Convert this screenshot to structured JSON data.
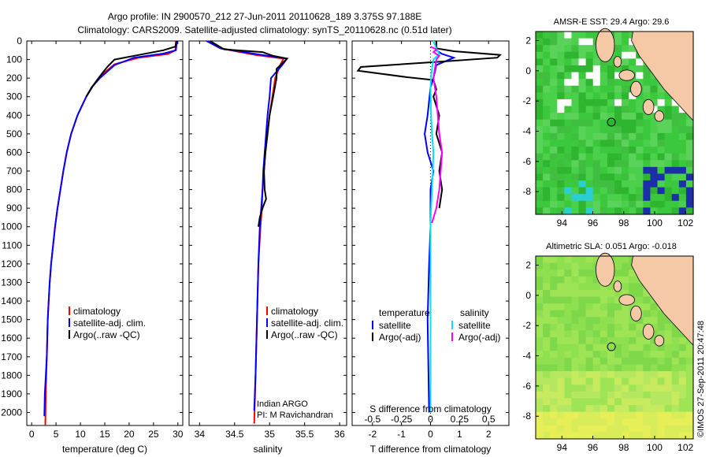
{
  "header": {
    "line1": "Argo profile: IN 2900570_212 27-Jun-2011 20110628_189 3.375S 97.188E",
    "line2": "Climatology: CARS2009. Satellite-adjusted climatology: synTS_20110628.nc (0.51d later)"
  },
  "credit": "©IMOS 27-Sep-2011 20:47:48",
  "depth_ticks": [
    0,
    100,
    200,
    300,
    400,
    500,
    600,
    700,
    800,
    900,
    1000,
    1100,
    1200,
    1300,
    1400,
    1500,
    1600,
    1700,
    1800,
    1900,
    2000
  ],
  "colors": {
    "climatology": "#ff0000",
    "satellite": "#0000ff",
    "argo": "#000000",
    "salinity_sat": "#00e0ff",
    "salinity_argo": "#ff00ff",
    "land": "#f5c9a6",
    "missing": "#ffffff"
  },
  "chart_data": [
    {
      "id": "temperature",
      "type": "line",
      "xlabel": "temperature (deg C)",
      "xlim": [
        -1,
        31
      ],
      "ylim": [
        2070,
        0
      ],
      "xticks": [
        0,
        5,
        10,
        15,
        20,
        25,
        30
      ],
      "legend": [
        "climatology",
        "satellite-adj. clim.",
        "Argo(..raw -QC)"
      ],
      "series": [
        {
          "name": "climatology",
          "color": "#ff0000",
          "points": [
            [
              29.6,
              0
            ],
            [
              29.5,
              50
            ],
            [
              28,
              70
            ],
            [
              22,
              90
            ],
            [
              17,
              125
            ],
            [
              14,
              190
            ],
            [
              12.3,
              250
            ],
            [
              11.2,
              300
            ],
            [
              9.4,
              400
            ],
            [
              8.1,
              500
            ],
            [
              7.2,
              600
            ],
            [
              6.5,
              700
            ],
            [
              5.9,
              800
            ],
            [
              5.3,
              900
            ],
            [
              4.8,
              1000
            ],
            [
              4.4,
              1100
            ],
            [
              4.0,
              1200
            ],
            [
              3.7,
              1300
            ],
            [
              3.5,
              1400
            ],
            [
              3.3,
              1500
            ],
            [
              3.1,
              1700
            ],
            [
              2.9,
              1900
            ],
            [
              2.8,
              2070
            ]
          ]
        },
        {
          "name": "satellite-adj. clim.",
          "color": "#0000ff",
          "points": [
            [
              29.8,
              0
            ],
            [
              29.6,
              50
            ],
            [
              27,
              68
            ],
            [
              21,
              90
            ],
            [
              17,
              130
            ],
            [
              14,
              200
            ],
            [
              12.3,
              250
            ],
            [
              11.2,
              300
            ],
            [
              9.4,
              400
            ],
            [
              8.1,
              500
            ],
            [
              7.2,
              600
            ],
            [
              6.5,
              700
            ],
            [
              5.9,
              800
            ],
            [
              5.3,
              900
            ],
            [
              4.8,
              1000
            ],
            [
              4.4,
              1100
            ],
            [
              4.0,
              1200
            ],
            [
              3.7,
              1300
            ],
            [
              3.5,
              1400
            ],
            [
              3.3,
              1500
            ],
            [
              3.1,
              1700
            ],
            [
              2.7,
              1900
            ],
            [
              2.6,
              2020
            ]
          ]
        },
        {
          "name": "Argo(..raw -QC)",
          "color": "#000000",
          "points": [
            [
              29.7,
              0
            ],
            [
              29.5,
              30
            ],
            [
              27,
              50
            ],
            [
              22,
              75
            ],
            [
              17,
              100
            ],
            [
              15.5,
              140
            ],
            [
              14,
              190
            ],
            [
              12.5,
              245
            ],
            [
              11.2,
              300
            ]
          ]
        }
      ]
    },
    {
      "id": "salinity",
      "type": "line",
      "xlabel": "salinity",
      "xlim": [
        33.85,
        36.1
      ],
      "ylim": [
        2070,
        0
      ],
      "xticks": [
        34,
        34.5,
        35,
        35.5,
        36
      ],
      "legend": [
        "climatology",
        "satellite-adj. clim.",
        "Argo(..raw -QC)"
      ],
      "annotation": [
        "Indian ARGO",
        "PI: M Ravichandran"
      ],
      "series": [
        {
          "name": "climatology",
          "color": "#ff0000",
          "points": [
            [
              34.1,
              0
            ],
            [
              34.3,
              40
            ],
            [
              34.8,
              75
            ],
            [
              35.2,
              95
            ],
            [
              35.15,
              130
            ],
            [
              35.08,
              200
            ],
            [
              35.04,
              300
            ],
            [
              35.0,
              400
            ],
            [
              34.97,
              500
            ],
            [
              34.94,
              600
            ],
            [
              34.92,
              700
            ],
            [
              34.9,
              800
            ],
            [
              34.89,
              900
            ],
            [
              34.87,
              1000
            ],
            [
              34.84,
              1200
            ],
            [
              34.82,
              1500
            ],
            [
              34.8,
              1800
            ],
            [
              34.78,
              2060
            ]
          ]
        },
        {
          "name": "satellite-adj. clim.",
          "color": "#0000ff",
          "points": [
            [
              34.1,
              0
            ],
            [
              34.3,
              40
            ],
            [
              34.8,
              70
            ],
            [
              35.25,
              95
            ],
            [
              35.18,
              130
            ],
            [
              35.02,
              200
            ],
            [
              35.0,
              300
            ],
            [
              34.97,
              400
            ],
            [
              34.95,
              500
            ],
            [
              34.93,
              600
            ],
            [
              34.91,
              700
            ],
            [
              34.9,
              800
            ],
            [
              34.88,
              900
            ],
            [
              34.86,
              1000
            ],
            [
              34.84,
              1200
            ],
            [
              34.82,
              1500
            ],
            [
              34.8,
              1800
            ],
            [
              34.78,
              1990
            ]
          ]
        },
        {
          "name": "Argo(..raw -QC)",
          "color": "#000000",
          "points": [
            [
              34.15,
              0
            ],
            [
              34.35,
              45
            ],
            [
              34.9,
              60
            ],
            [
              35.05,
              80
            ],
            [
              35.25,
              95
            ],
            [
              35.1,
              150
            ],
            [
              35.1,
              200
            ],
            [
              35.05,
              300
            ],
            [
              35.0,
              400
            ],
            [
              34.97,
              500
            ],
            [
              34.94,
              600
            ],
            [
              34.92,
              700
            ],
            [
              34.93,
              800
            ],
            [
              34.95,
              850
            ],
            [
              34.9,
              900
            ],
            [
              34.86,
              950
            ],
            [
              34.84,
              1000
            ]
          ]
        }
      ]
    },
    {
      "id": "difference",
      "type": "line",
      "xlabel": "T difference from climatology",
      "xlabel_top": "S difference from climatology",
      "xlim": [
        -2.7,
        2.7
      ],
      "ylim": [
        2070,
        0
      ],
      "xticks": [
        -2,
        -1,
        0,
        1,
        2
      ],
      "sticks": [
        -0.5,
        -0.25,
        0,
        0.25,
        0.5
      ],
      "legend_header": [
        "temperature",
        "salinity"
      ],
      "legend": [
        "satellite",
        "Argo(-adj)",
        "satellite",
        "Argo(-adj)"
      ],
      "series": [
        {
          "name": "T satellite",
          "color": "#0000ff",
          "points": [
            [
              0.2,
              0
            ],
            [
              0.2,
              50
            ],
            [
              0.4,
              70
            ],
            [
              0.8,
              90
            ],
            [
              0.5,
              110
            ],
            [
              0.2,
              130
            ],
            [
              0.1,
              200
            ],
            [
              0.0,
              250
            ],
            [
              -0.1,
              400
            ],
            [
              -0.2,
              500
            ],
            [
              -0.1,
              600
            ],
            [
              0.1,
              700
            ],
            [
              0.0,
              800
            ],
            [
              0.0,
              1000
            ],
            [
              -0.05,
              1200
            ],
            [
              -0.1,
              1500
            ],
            [
              -0.05,
              2000
            ]
          ]
        },
        {
          "name": "T Argo(-adj)",
          "color": "#000000",
          "points": [
            [
              0.2,
              0
            ],
            [
              0.2,
              40
            ],
            [
              0.8,
              55
            ],
            [
              2.4,
              75
            ],
            [
              2.3,
              90
            ],
            [
              0.5,
              110
            ],
            [
              -2.4,
              140
            ],
            [
              -2.5,
              160
            ],
            [
              -0.8,
              195
            ],
            [
              0.1,
              210
            ],
            [
              0.2,
              260
            ],
            [
              0.1,
              300
            ],
            [
              0.3,
              400
            ],
            [
              0.2,
              500
            ],
            [
              0.4,
              600
            ],
            [
              0.3,
              700
            ],
            [
              0.4,
              800
            ],
            [
              0.3,
              900
            ]
          ]
        },
        {
          "name": "S satellite",
          "color": "#00e0ff",
          "points": [
            [
              0.1,
              0
            ],
            [
              0.2,
              40
            ],
            [
              0.3,
              70
            ],
            [
              0.1,
              100
            ],
            [
              0.05,
              150
            ],
            [
              0.02,
              200
            ],
            [
              0.0,
              250
            ],
            [
              0.02,
              400
            ],
            [
              0.05,
              500
            ],
            [
              0.1,
              600
            ],
            [
              0.08,
              700
            ],
            [
              0.05,
              800
            ],
            [
              0.02,
              900
            ],
            [
              0.0,
              1000
            ],
            [
              0.0,
              1500
            ],
            [
              0.0,
              2000
            ]
          ]
        },
        {
          "name": "S Argo(-adj)",
          "color": "#ff00ff",
          "points": [
            [
              0.0,
              30
            ],
            [
              0.2,
              45
            ],
            [
              0.1,
              60
            ],
            [
              0.3,
              80
            ],
            [
              0.2,
              100
            ],
            [
              0.15,
              150
            ],
            [
              0.1,
              200
            ],
            [
              0.2,
              300
            ],
            [
              0.25,
              400
            ],
            [
              0.3,
              500
            ],
            [
              0.4,
              600
            ],
            [
              0.35,
              700
            ],
            [
              0.3,
              800
            ],
            [
              0.2,
              900
            ],
            [
              0.05,
              980
            ]
          ]
        }
      ]
    },
    {
      "id": "sst_map",
      "type": "heatmap",
      "title": "AMSR-E SST: 29.4  Argo: 29.6",
      "xticks": [
        94,
        96,
        98,
        100,
        102
      ],
      "yticks": [
        2,
        0,
        -2,
        -4,
        -6,
        -8
      ],
      "xlim": [
        92.3,
        102.5
      ],
      "ylim": [
        -9.5,
        2.6
      ],
      "marker": [
        97.2,
        -3.4
      ]
    },
    {
      "id": "sla_map",
      "type": "heatmap",
      "title": "Altimetric SLA: 0.051  Argo: -0.018",
      "xticks": [
        94,
        96,
        98,
        100,
        102
      ],
      "yticks": [
        2,
        0,
        -2,
        -4,
        -6,
        -8
      ],
      "xlim": [
        92.3,
        102.5
      ],
      "ylim": [
        -9.5,
        2.6
      ],
      "marker": [
        97.2,
        -3.4
      ]
    }
  ]
}
